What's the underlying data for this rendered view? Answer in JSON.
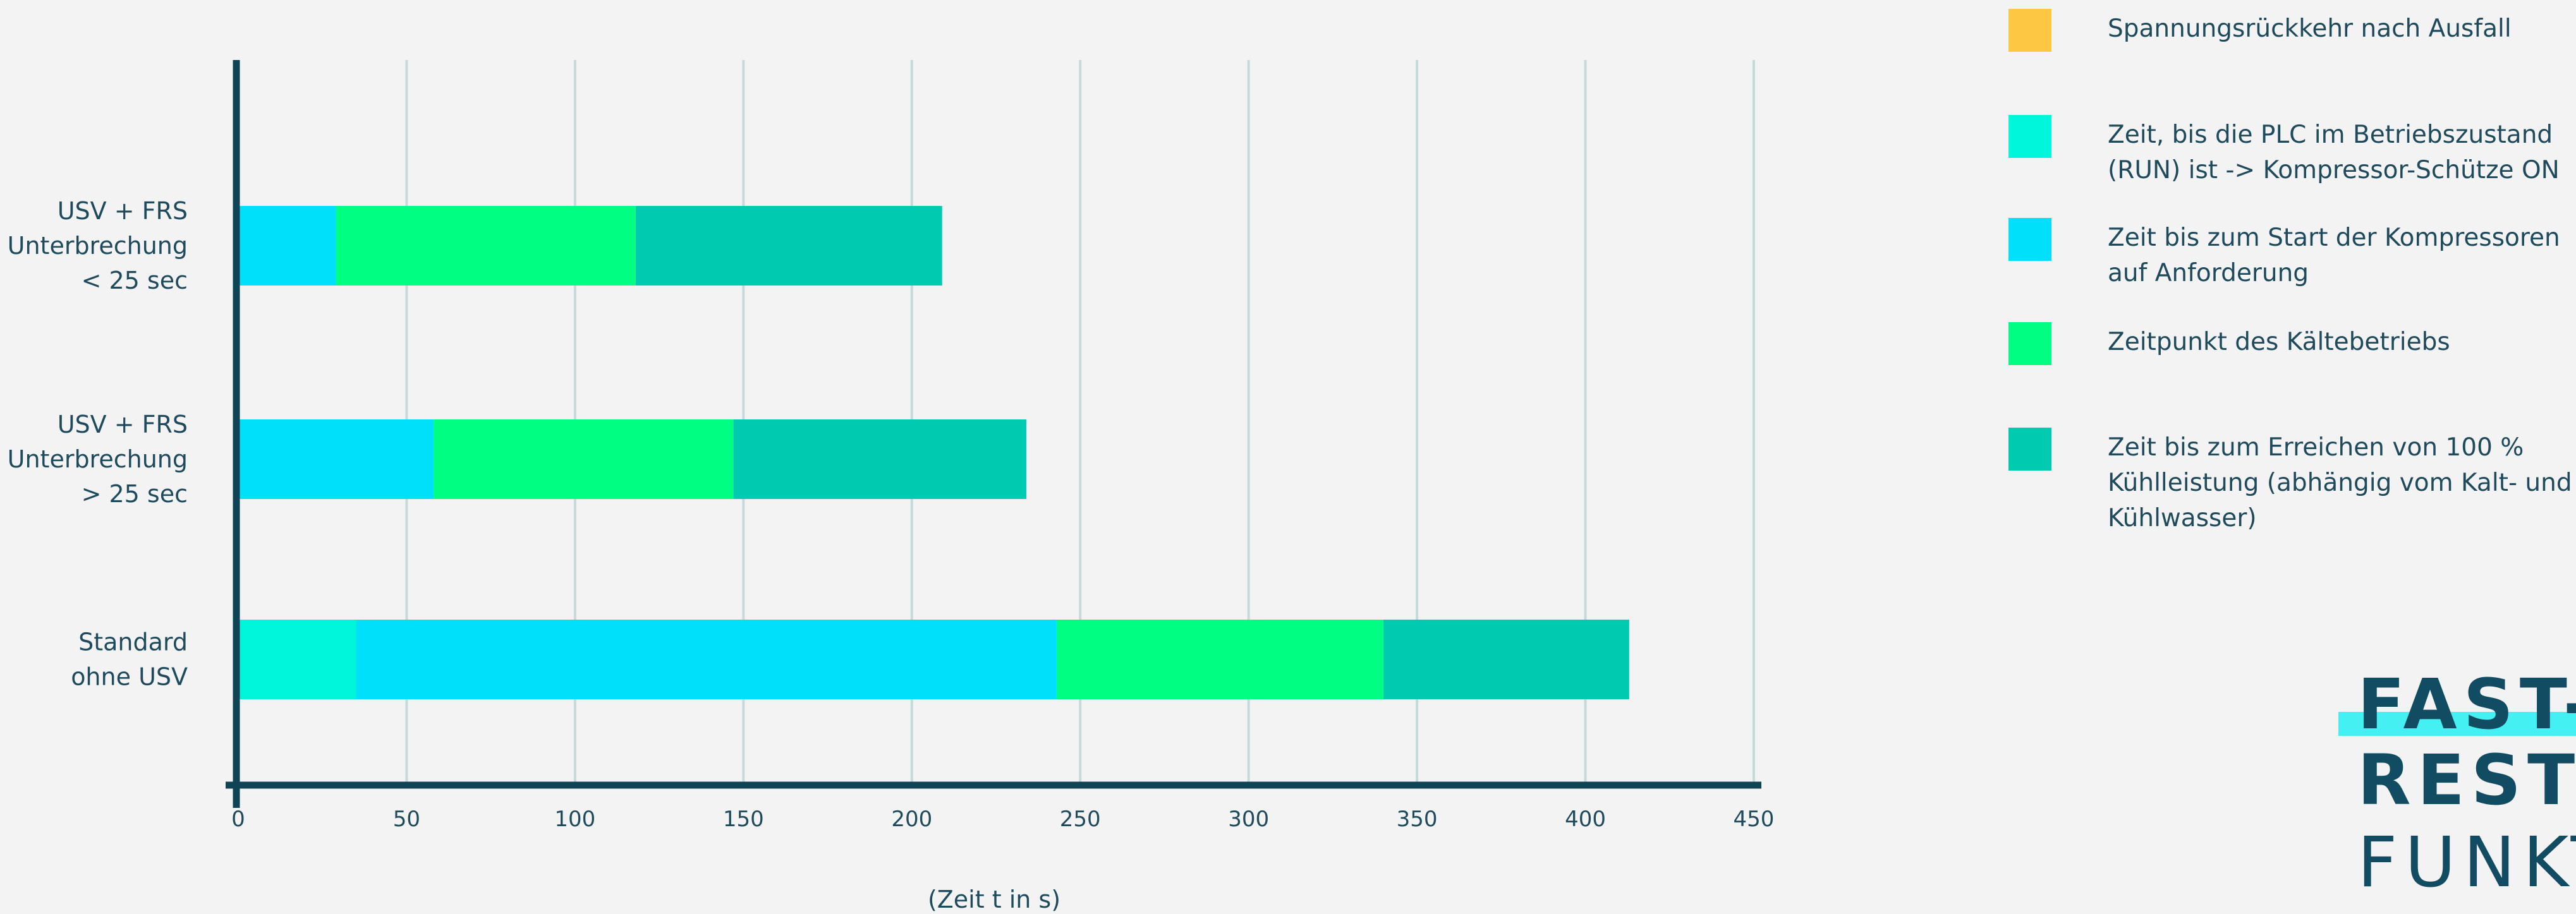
{
  "chart_data": {
    "type": "bar",
    "orientation": "horizontal",
    "stacked": true,
    "categories": [
      "USV + FRS Unterbrechung < 25 sec",
      "USV + FRS Unterbrechung > 25 sec",
      "Standard ohne USV"
    ],
    "category_lines": [
      [
        "USV + FRS",
        "Unterbrechung",
        "< 25 sec"
      ],
      [
        "USV + FRS",
        "Unterbrechung",
        "> 25 sec"
      ],
      [
        "Standard",
        "ohne USV"
      ]
    ],
    "segments": [
      [
        {
          "color": "#00e0fb",
          "start": 0,
          "end": 29
        },
        {
          "color": "#00fe82",
          "start": 29,
          "end": 118
        },
        {
          "color": "#00cbb0",
          "start": 118,
          "end": 209
        }
      ],
      [
        {
          "color": "#00e0fb",
          "start": 0,
          "end": 58
        },
        {
          "color": "#00fe82",
          "start": 58,
          "end": 147
        },
        {
          "color": "#00cbb0",
          "start": 147,
          "end": 234
        }
      ],
      [
        {
          "color": "#00f6db",
          "start": 0,
          "end": 35
        },
        {
          "color": "#00e0fb",
          "start": 35,
          "end": 243
        },
        {
          "color": "#00fe82",
          "start": 243,
          "end": 340
        },
        {
          "color": "#00cbb0",
          "start": 340,
          "end": 413
        }
      ]
    ],
    "xlim": [
      0,
      450
    ],
    "xticks": [
      0,
      50,
      100,
      150,
      200,
      250,
      300,
      350,
      400,
      450
    ],
    "xlabel": "(Zeit t in s)",
    "ylabel": "",
    "title": "",
    "grid": "vertical",
    "legend_position": "right"
  },
  "legend": {
    "items": [
      {
        "color": "#fec743",
        "lines": [
          "Spannungsrückkehr nach Ausfall"
        ]
      },
      {
        "color": "#00f6db",
        "lines": [
          "Zeit, bis die PLC im Betriebszustand",
          "(RUN) ist -> Kompressor-Schütze ON"
        ]
      },
      {
        "color": "#00e0fb",
        "lines": [
          "Zeit bis zum Start der Kompressoren",
          "auf Anforderung"
        ]
      },
      {
        "color": "#00fe82",
        "lines": [
          "Zeitpunkt des Kältebetriebs"
        ]
      },
      {
        "color": "#00cbb0",
        "lines": [
          "Zeit bis zum Erreichen von 100 %",
          "Kühlleistung (abhängig vom Kalt- und",
          "Kühlwasser)"
        ]
      }
    ]
  },
  "brand": {
    "line1": "FAST-",
    "line2": "RESTA",
    "line3": "FUNKT"
  },
  "colors": {
    "axis": "#0f4457",
    "grid": "#c6dada",
    "text": "#1f4a5c",
    "background": "#f3f3f3"
  }
}
